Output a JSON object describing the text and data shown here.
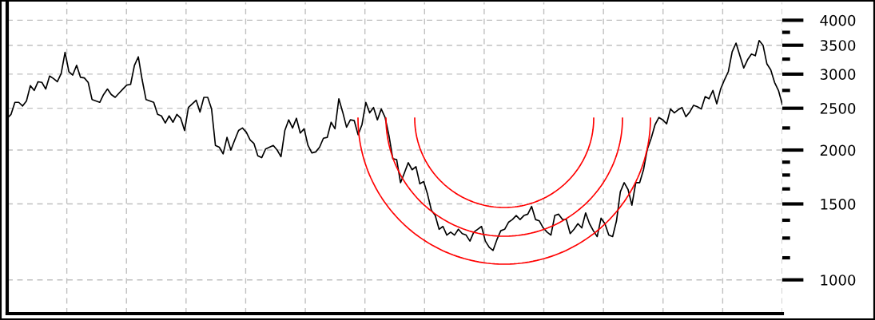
{
  "chart_data": {
    "type": "line",
    "log": true,
    "grid": true,
    "tick_labels": "y",
    "ylim": [
      835,
      4400
    ],
    "yticks": [
      1000,
      {
        "value": 1125,
        "label": null
      },
      {
        "value": 1250,
        "label": null
      },
      {
        "value": 1375,
        "label": null
      },
      1500,
      {
        "value": 1625,
        "label": null
      },
      {
        "value": 1750,
        "label": null
      },
      {
        "value": 1875,
        "label": null
      },
      2000,
      {
        "value": 2250,
        "label": null
      },
      2500,
      {
        "value": 2750,
        "label": null
      },
      3000,
      {
        "value": 3250,
        "label": null
      },
      3500,
      {
        "value": 3750,
        "label": null
      },
      4000
    ],
    "categories": [
      null,
      null,
      null,
      null,
      null,
      null,
      null,
      null,
      null,
      null,
      null,
      null,
      null,
      null,
      null,
      null,
      null,
      null,
      null,
      null,
      null,
      null,
      null,
      null,
      null,
      null,
      null,
      null,
      null,
      null,
      null,
      null,
      null,
      null,
      null,
      null,
      null,
      null,
      null,
      null,
      null,
      null,
      null,
      null,
      null,
      null,
      null,
      null,
      null,
      null,
      null,
      null,
      null,
      null,
      null,
      null,
      null,
      null,
      null,
      null,
      null,
      null,
      null,
      null,
      null,
      null,
      null,
      null,
      null,
      null,
      null,
      null,
      null,
      null,
      null,
      null,
      null,
      null,
      null,
      null,
      null,
      null,
      null,
      null,
      null,
      null,
      null,
      null,
      null,
      null,
      null,
      null,
      null,
      null,
      null,
      null,
      null,
      null,
      null,
      null,
      null,
      null,
      null,
      null,
      null,
      null,
      null,
      null,
      null,
      null,
      null,
      null,
      null,
      null,
      null,
      null,
      null,
      null,
      null,
      null,
      null,
      null,
      null,
      null,
      null,
      null,
      null,
      null,
      null,
      null,
      null,
      null,
      null,
      null,
      null,
      null,
      null,
      null,
      null,
      null,
      null,
      null,
      null,
      null,
      null,
      null,
      null,
      null,
      null,
      null,
      null,
      null,
      null,
      null,
      null,
      null,
      null,
      null,
      null,
      null,
      null,
      null,
      null,
      null,
      null,
      null,
      null,
      null,
      null,
      null,
      null,
      null,
      null,
      null,
      null,
      null,
      null,
      null,
      null,
      null,
      null,
      null,
      null,
      null,
      null,
      null,
      null,
      null,
      null,
      null,
      null,
      null,
      null,
      null,
      null,
      null,
      null,
      null,
      null,
      null,
      null,
      null
    ],
    "series": [
      {
        "color": "#000000",
        "values": [
          2370,
          2420,
          2580,
          2580,
          2530,
          2600,
          2820,
          2750,
          2880,
          2870,
          2770,
          2970,
          2930,
          2880,
          3010,
          3370,
          3040,
          2985,
          3145,
          2950,
          2940,
          2870,
          2620,
          2600,
          2580,
          2690,
          2770,
          2690,
          2650,
          2710,
          2770,
          2830,
          2840,
          3145,
          3290,
          2910,
          2620,
          2600,
          2580,
          2420,
          2400,
          2310,
          2400,
          2320,
          2420,
          2370,
          2220,
          2510,
          2560,
          2610,
          2450,
          2650,
          2650,
          2490,
          2050,
          2030,
          1960,
          2140,
          2000,
          2110,
          2220,
          2250,
          2200,
          2110,
          2070,
          1940,
          1920,
          2010,
          2030,
          2050,
          2000,
          1930,
          2220,
          2350,
          2250,
          2370,
          2190,
          2240,
          2050,
          1970,
          1980,
          2030,
          2130,
          2140,
          2320,
          2240,
          2630,
          2450,
          2260,
          2350,
          2340,
          2170,
          2290,
          2580,
          2440,
          2510,
          2350,
          2490,
          2380,
          2160,
          1910,
          1900,
          1680,
          1770,
          1870,
          1800,
          1830,
          1670,
          1690,
          1580,
          1450,
          1410,
          1310,
          1330,
          1270,
          1290,
          1270,
          1310,
          1280,
          1270,
          1230,
          1290,
          1310,
          1330,
          1230,
          1190,
          1170,
          1240,
          1300,
          1310,
          1360,
          1380,
          1410,
          1380,
          1410,
          1420,
          1480,
          1380,
          1370,
          1320,
          1290,
          1270,
          1410,
          1420,
          1380,
          1380,
          1280,
          1310,
          1350,
          1320,
          1430,
          1350,
          1300,
          1260,
          1390,
          1350,
          1270,
          1260,
          1370,
          1600,
          1680,
          1620,
          1490,
          1680,
          1680,
          1800,
          2010,
          2130,
          2290,
          2380,
          2350,
          2300,
          2490,
          2440,
          2480,
          2510,
          2390,
          2450,
          2540,
          2520,
          2490,
          2660,
          2630,
          2750,
          2560,
          2770,
          2910,
          3040,
          3380,
          3540,
          3310,
          3100,
          3240,
          3340,
          3310,
          3590,
          3500,
          3170,
          3070,
          2870,
          2750,
          2550
        ]
      }
    ]
  }
}
